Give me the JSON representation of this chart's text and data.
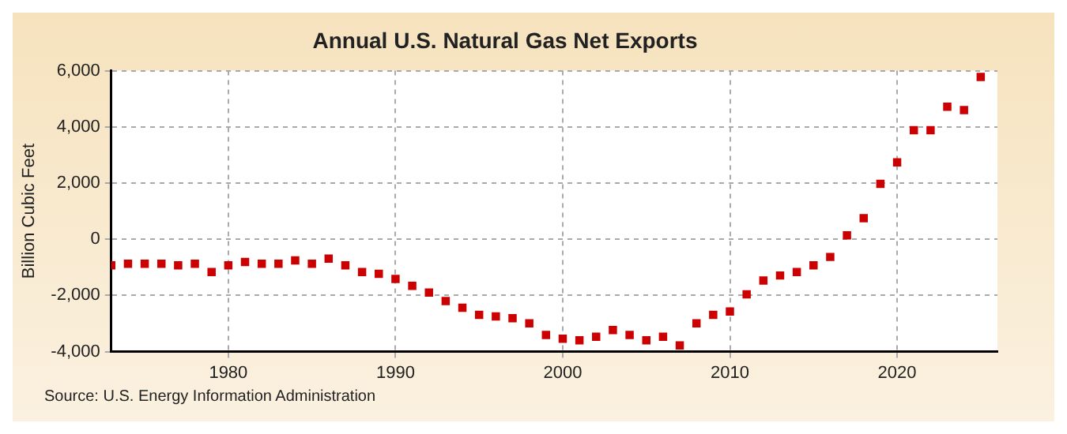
{
  "chart_data": {
    "type": "scatter",
    "title": "Annual U.S. Natural Gas Net Exports",
    "ylabel": "Billion Cubic Feet",
    "annotations": [
      "Source: U.S. Energy Information Administration"
    ],
    "x": [
      1973,
      1974,
      1975,
      1976,
      1977,
      1978,
      1979,
      1980,
      1981,
      1982,
      1983,
      1984,
      1985,
      1986,
      1987,
      1988,
      1989,
      1990,
      1991,
      1992,
      1993,
      1994,
      1995,
      1996,
      1997,
      1998,
      1999,
      2000,
      2001,
      2002,
      2003,
      2004,
      2005,
      2006,
      2007,
      2008,
      2009,
      2010,
      2011,
      2012,
      2013,
      2014,
      2015,
      2016,
      2017,
      2018,
      2019,
      2020,
      2021,
      2022,
      2023,
      2024,
      2025
    ],
    "series": [
      {
        "color": "#cc0000",
        "values": [
          -930,
          -870,
          -870,
          -870,
          -930,
          -870,
          -1170,
          -930,
          -810,
          -870,
          -870,
          -750,
          -870,
          -690,
          -930,
          -1170,
          -1230,
          -1410,
          -1660,
          -1900,
          -2200,
          -2440,
          -2690,
          -2750,
          -2810,
          -2990,
          -3410,
          -3540,
          -3600,
          -3470,
          -3230,
          -3410,
          -3600,
          -3470,
          -3780,
          -2990,
          -2690,
          -2570,
          -1960,
          -1470,
          -1290,
          -1170,
          -930,
          -630,
          140,
          750,
          1970,
          2740,
          3880,
          3880,
          4720,
          4600,
          5780
        ]
      }
    ],
    "xlim": [
      1973,
      2026
    ],
    "xticks": [
      1980,
      1990,
      2000,
      2010,
      2020
    ],
    "ylim": [
      -4000,
      6000
    ],
    "yticks": [
      {
        "value": -4000,
        "label": "-4,000"
      },
      {
        "value": -2000,
        "label": "-2,000"
      },
      0,
      {
        "value": 2000,
        "label": "2,000"
      },
      {
        "value": 4000,
        "label": "4,000"
      },
      {
        "value": 6000,
        "label": "6,000"
      }
    ],
    "grid": true,
    "marker": "square",
    "legend": false
  }
}
